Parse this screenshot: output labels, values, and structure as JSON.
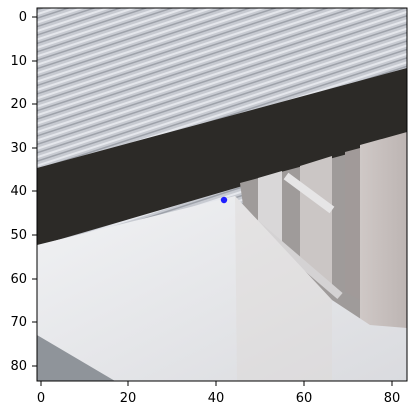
{
  "figure": {
    "image_description_role": "raster image with pixel-index axes",
    "x_axis": {
      "ticks": [
        "0",
        "20",
        "40",
        "60",
        "80"
      ]
    },
    "y_axis": {
      "ticks": [
        "0",
        "10",
        "20",
        "30",
        "40",
        "50",
        "60",
        "70",
        "80"
      ]
    },
    "marker": {
      "x": 42,
      "y": 42,
      "color": "#1f1fff"
    },
    "colors": {
      "roof_light": "#c9ccd3",
      "roof_dark": "#2c2a27",
      "wall_light": "#e9eaed",
      "wall_shadow": "#d6d2cf",
      "window_gray": "#a7a6a8",
      "pavement": "#8f949a"
    }
  }
}
